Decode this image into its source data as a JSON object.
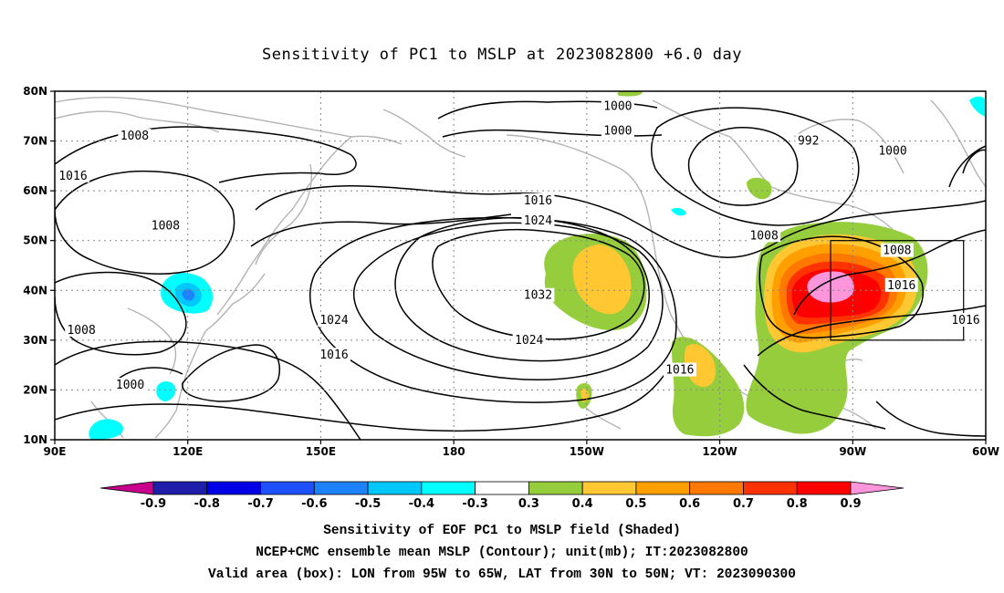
{
  "title": "Sensitivity of PC1 to MSLP at 2023082800 +6.0 day",
  "captions": [
    "Sensitivity of EOF PC1 to MSLP field (Shaded)",
    "NCEP+CMC ensemble mean MSLP (Contour); unit(mb); IT:2023082800",
    "Valid area (box): LON from 95W to 65W, LAT from 30N to 50N; VT: 2023090300"
  ],
  "map": {
    "lon_range": [
      90,
      300
    ],
    "lat_range": [
      10,
      80
    ],
    "lat_ticks": [
      {
        "value": 80,
        "label": "80N"
      },
      {
        "value": 70,
        "label": "70N"
      },
      {
        "value": 60,
        "label": "60N"
      },
      {
        "value": 50,
        "label": "50N"
      },
      {
        "value": 40,
        "label": "40N"
      },
      {
        "value": 30,
        "label": "30N"
      },
      {
        "value": 20,
        "label": "20N"
      },
      {
        "value": 10,
        "label": "10N"
      }
    ],
    "lon_ticks": [
      {
        "value": 90,
        "label": "90E"
      },
      {
        "value": 120,
        "label": "120E"
      },
      {
        "value": 150,
        "label": "150E"
      },
      {
        "value": 180,
        "label": "180"
      },
      {
        "value": 210,
        "label": "150W"
      },
      {
        "value": 240,
        "label": "120W"
      },
      {
        "value": 270,
        "label": "90W"
      },
      {
        "value": 300,
        "label": "60W"
      }
    ],
    "valid_box": {
      "lon": [
        265,
        295
      ],
      "lat": [
        30,
        50
      ]
    },
    "contour_labels": [
      {
        "text": "1000",
        "lon": 217,
        "lat": 77
      },
      {
        "text": "1000",
        "lon": 217,
        "lat": 72
      },
      {
        "text": "992",
        "lon": 260,
        "lat": 70
      },
      {
        "text": "1000",
        "lon": 279,
        "lat": 68
      },
      {
        "text": "1008",
        "lon": 108,
        "lat": 71
      },
      {
        "text": "1016",
        "lon": 91,
        "lat": 63
      },
      {
        "text": "1016",
        "lon": 199,
        "lat": 58
      },
      {
        "text": "1024",
        "lon": 199,
        "lat": 54
      },
      {
        "text": "1008",
        "lon": 115,
        "lat": 53
      },
      {
        "text": "1008",
        "lon": 250,
        "lat": 51
      },
      {
        "text": "1008",
        "lon": 280,
        "lat": 48
      },
      {
        "text": "1016",
        "lon": 281,
        "lat": 41
      },
      {
        "text": "1032",
        "lon": 199,
        "lat": 39
      },
      {
        "text": "1024",
        "lon": 153,
        "lat": 34
      },
      {
        "text": "1016",
        "lon": 303,
        "lat": 34
      },
      {
        "text": "1008",
        "lon": 96,
        "lat": 32
      },
      {
        "text": "1024",
        "lon": 197,
        "lat": 30
      },
      {
        "text": "1016",
        "lon": 153,
        "lat": 27
      },
      {
        "text": "1016",
        "lon": 231,
        "lat": 24
      },
      {
        "text": "1000",
        "lon": 107,
        "lat": 21
      }
    ]
  },
  "colorbar": {
    "colors": [
      "#c8008c",
      "#1e1eaa",
      "#0000e6",
      "#1e50ff",
      "#1e82ff",
      "#00c8ff",
      "#00ffff",
      "#ffffff",
      "#96cd3c",
      "#ffc832",
      "#ffa000",
      "#ff7800",
      "#ff3200",
      "#ff0000",
      "#ff96dc"
    ],
    "labels": [
      "-0.9",
      "-0.8",
      "-0.7",
      "-0.6",
      "-0.5",
      "-0.4",
      "-0.3",
      "0.3",
      "0.4",
      "0.5",
      "0.6",
      "0.7",
      "0.8",
      "0.9"
    ]
  }
}
